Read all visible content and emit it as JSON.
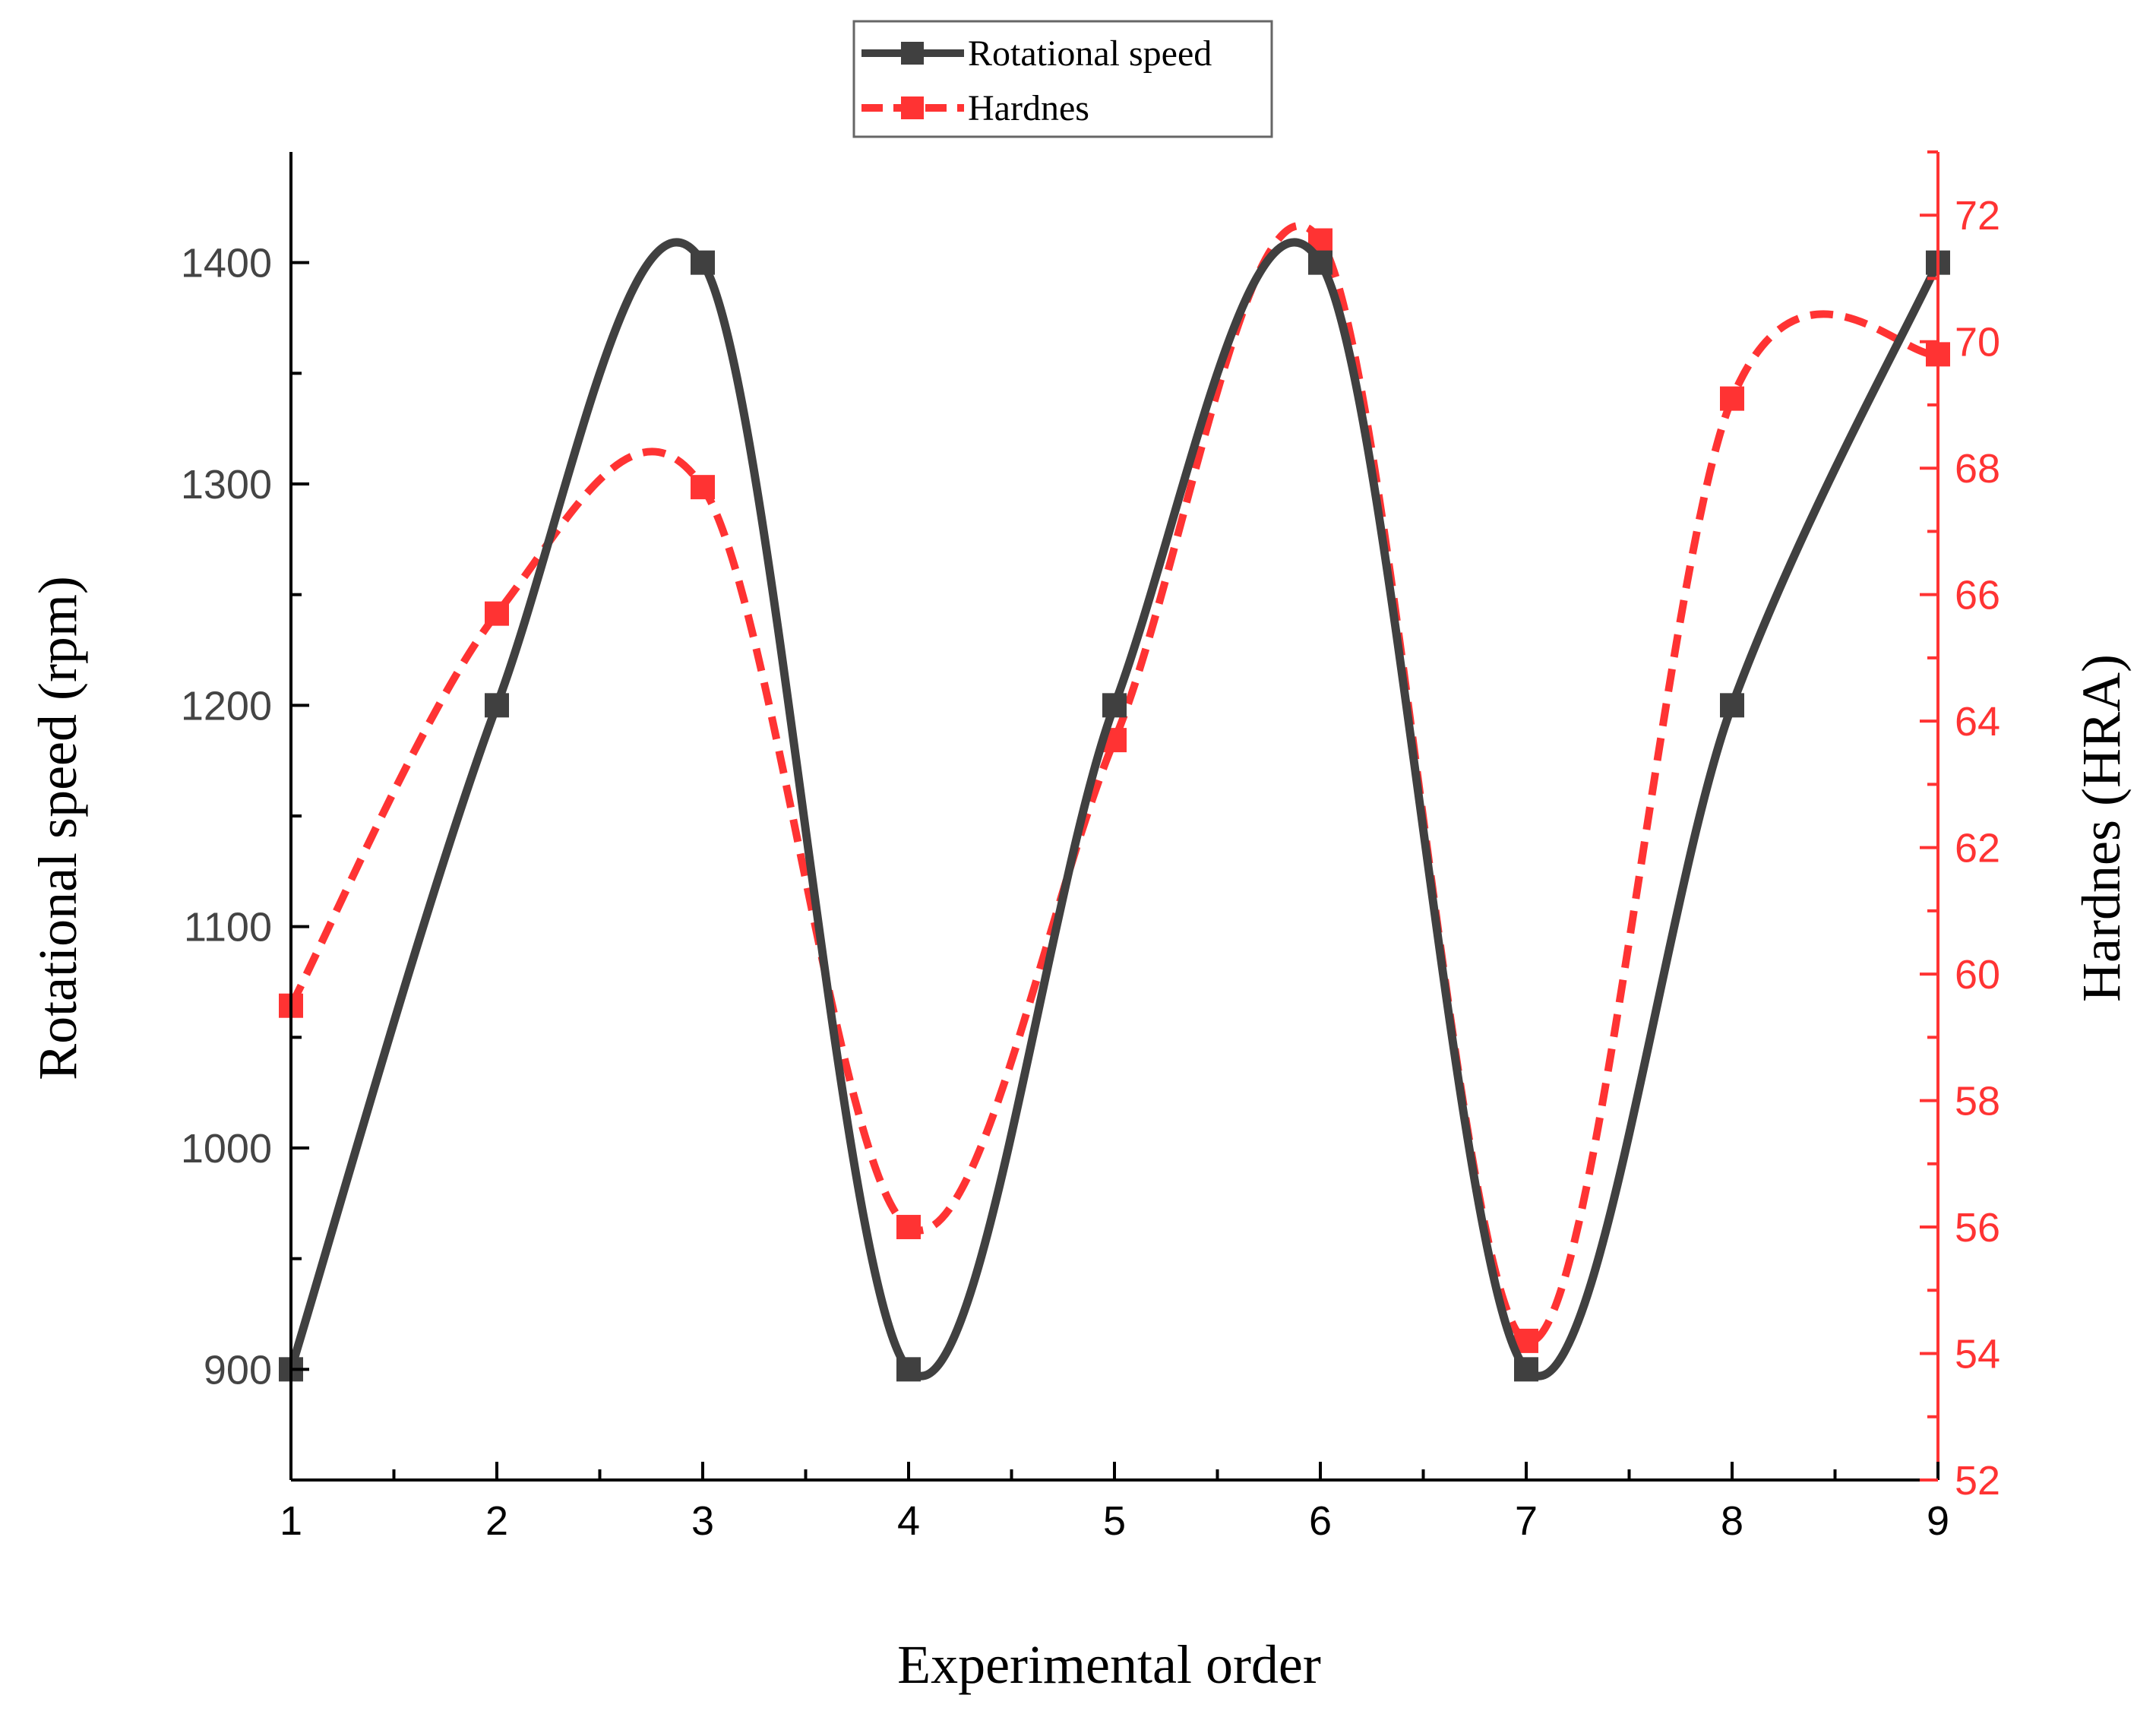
{
  "chart_data": {
    "type": "line",
    "x": [
      1,
      2,
      3,
      4,
      5,
      6,
      7,
      8,
      9
    ],
    "xlabel": "Experimental order",
    "xlim": [
      1,
      9
    ],
    "xticks": [
      "1",
      "2",
      "3",
      "4",
      "5",
      "6",
      "7",
      "8",
      "9"
    ],
    "ylabel": "Rotational speed (rpm)",
    "ylim": [
      850,
      1450
    ],
    "yticks": [
      "900",
      "1000",
      "1100",
      "1200",
      "1300",
      "1400"
    ],
    "y2label": "Hardnes (HRA)",
    "y2lim": [
      52,
      73
    ],
    "y2ticks": [
      "52",
      "54",
      "56",
      "58",
      "60",
      "62",
      "64",
      "66",
      "68",
      "70",
      "72"
    ],
    "legend_position": "top-center",
    "grid": false,
    "series": [
      {
        "name": "Rotational speed",
        "axis": "left",
        "color": "#404040",
        "style": "solid",
        "marker": "square",
        "values": [
          900,
          1200,
          1400,
          900,
          1200,
          1400,
          900,
          1200,
          1400
        ]
      },
      {
        "name": "Hardnes",
        "axis": "right",
        "color": "#ff3333",
        "style": "dashed",
        "marker": "square",
        "values": [
          59.5,
          65.7,
          67.7,
          56.0,
          63.7,
          71.6,
          54.2,
          69.1,
          69.8
        ]
      }
    ]
  }
}
